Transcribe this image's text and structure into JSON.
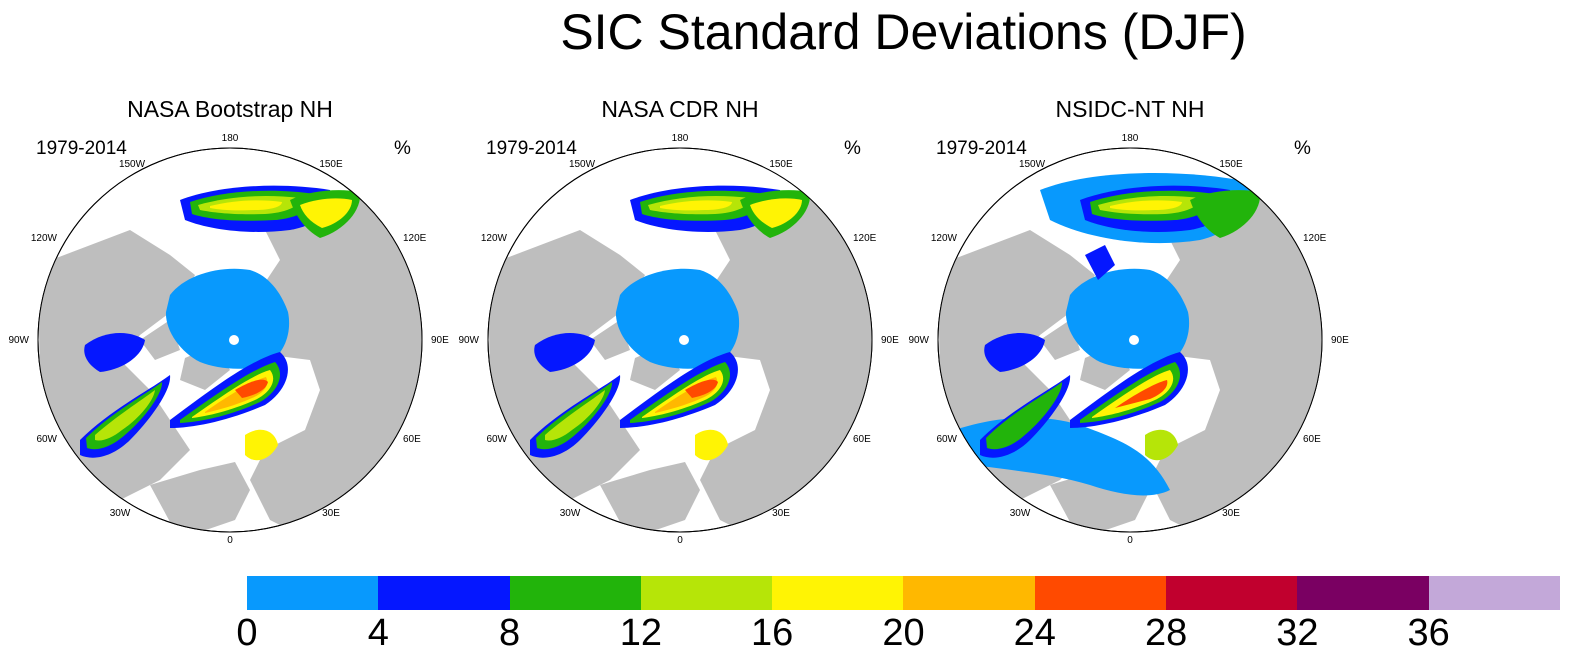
{
  "title": "SIC Standard Deviations (DJF)",
  "panels": [
    {
      "title": "NASA Bootstrap NH",
      "years": "1979-2014",
      "unit": "%"
    },
    {
      "title": "NASA CDR NH",
      "years": "1979-2014",
      "unit": "%"
    },
    {
      "title": "NSIDC-NT NH",
      "years": "1979-2014",
      "unit": "%"
    }
  ],
  "longitude_labels": [
    "180",
    "150E",
    "120E",
    "90E",
    "60E",
    "30E",
    "0",
    "30W",
    "60W",
    "90W",
    "120W",
    "150W"
  ],
  "colorbar": {
    "tick_labels": [
      "0",
      "4",
      "8",
      "12",
      "16",
      "20",
      "24",
      "28",
      "32",
      "36"
    ],
    "colors": [
      "#0899fd",
      "#0517ff",
      "#22b40b",
      "#b6e508",
      "#fff404",
      "#ffb800",
      "#ff4a00",
      "#c1002e",
      "#7a0062",
      "#c3a8d9"
    ]
  },
  "colors": {
    "land": "#bebebe",
    "ocean": "#ffffff"
  }
}
